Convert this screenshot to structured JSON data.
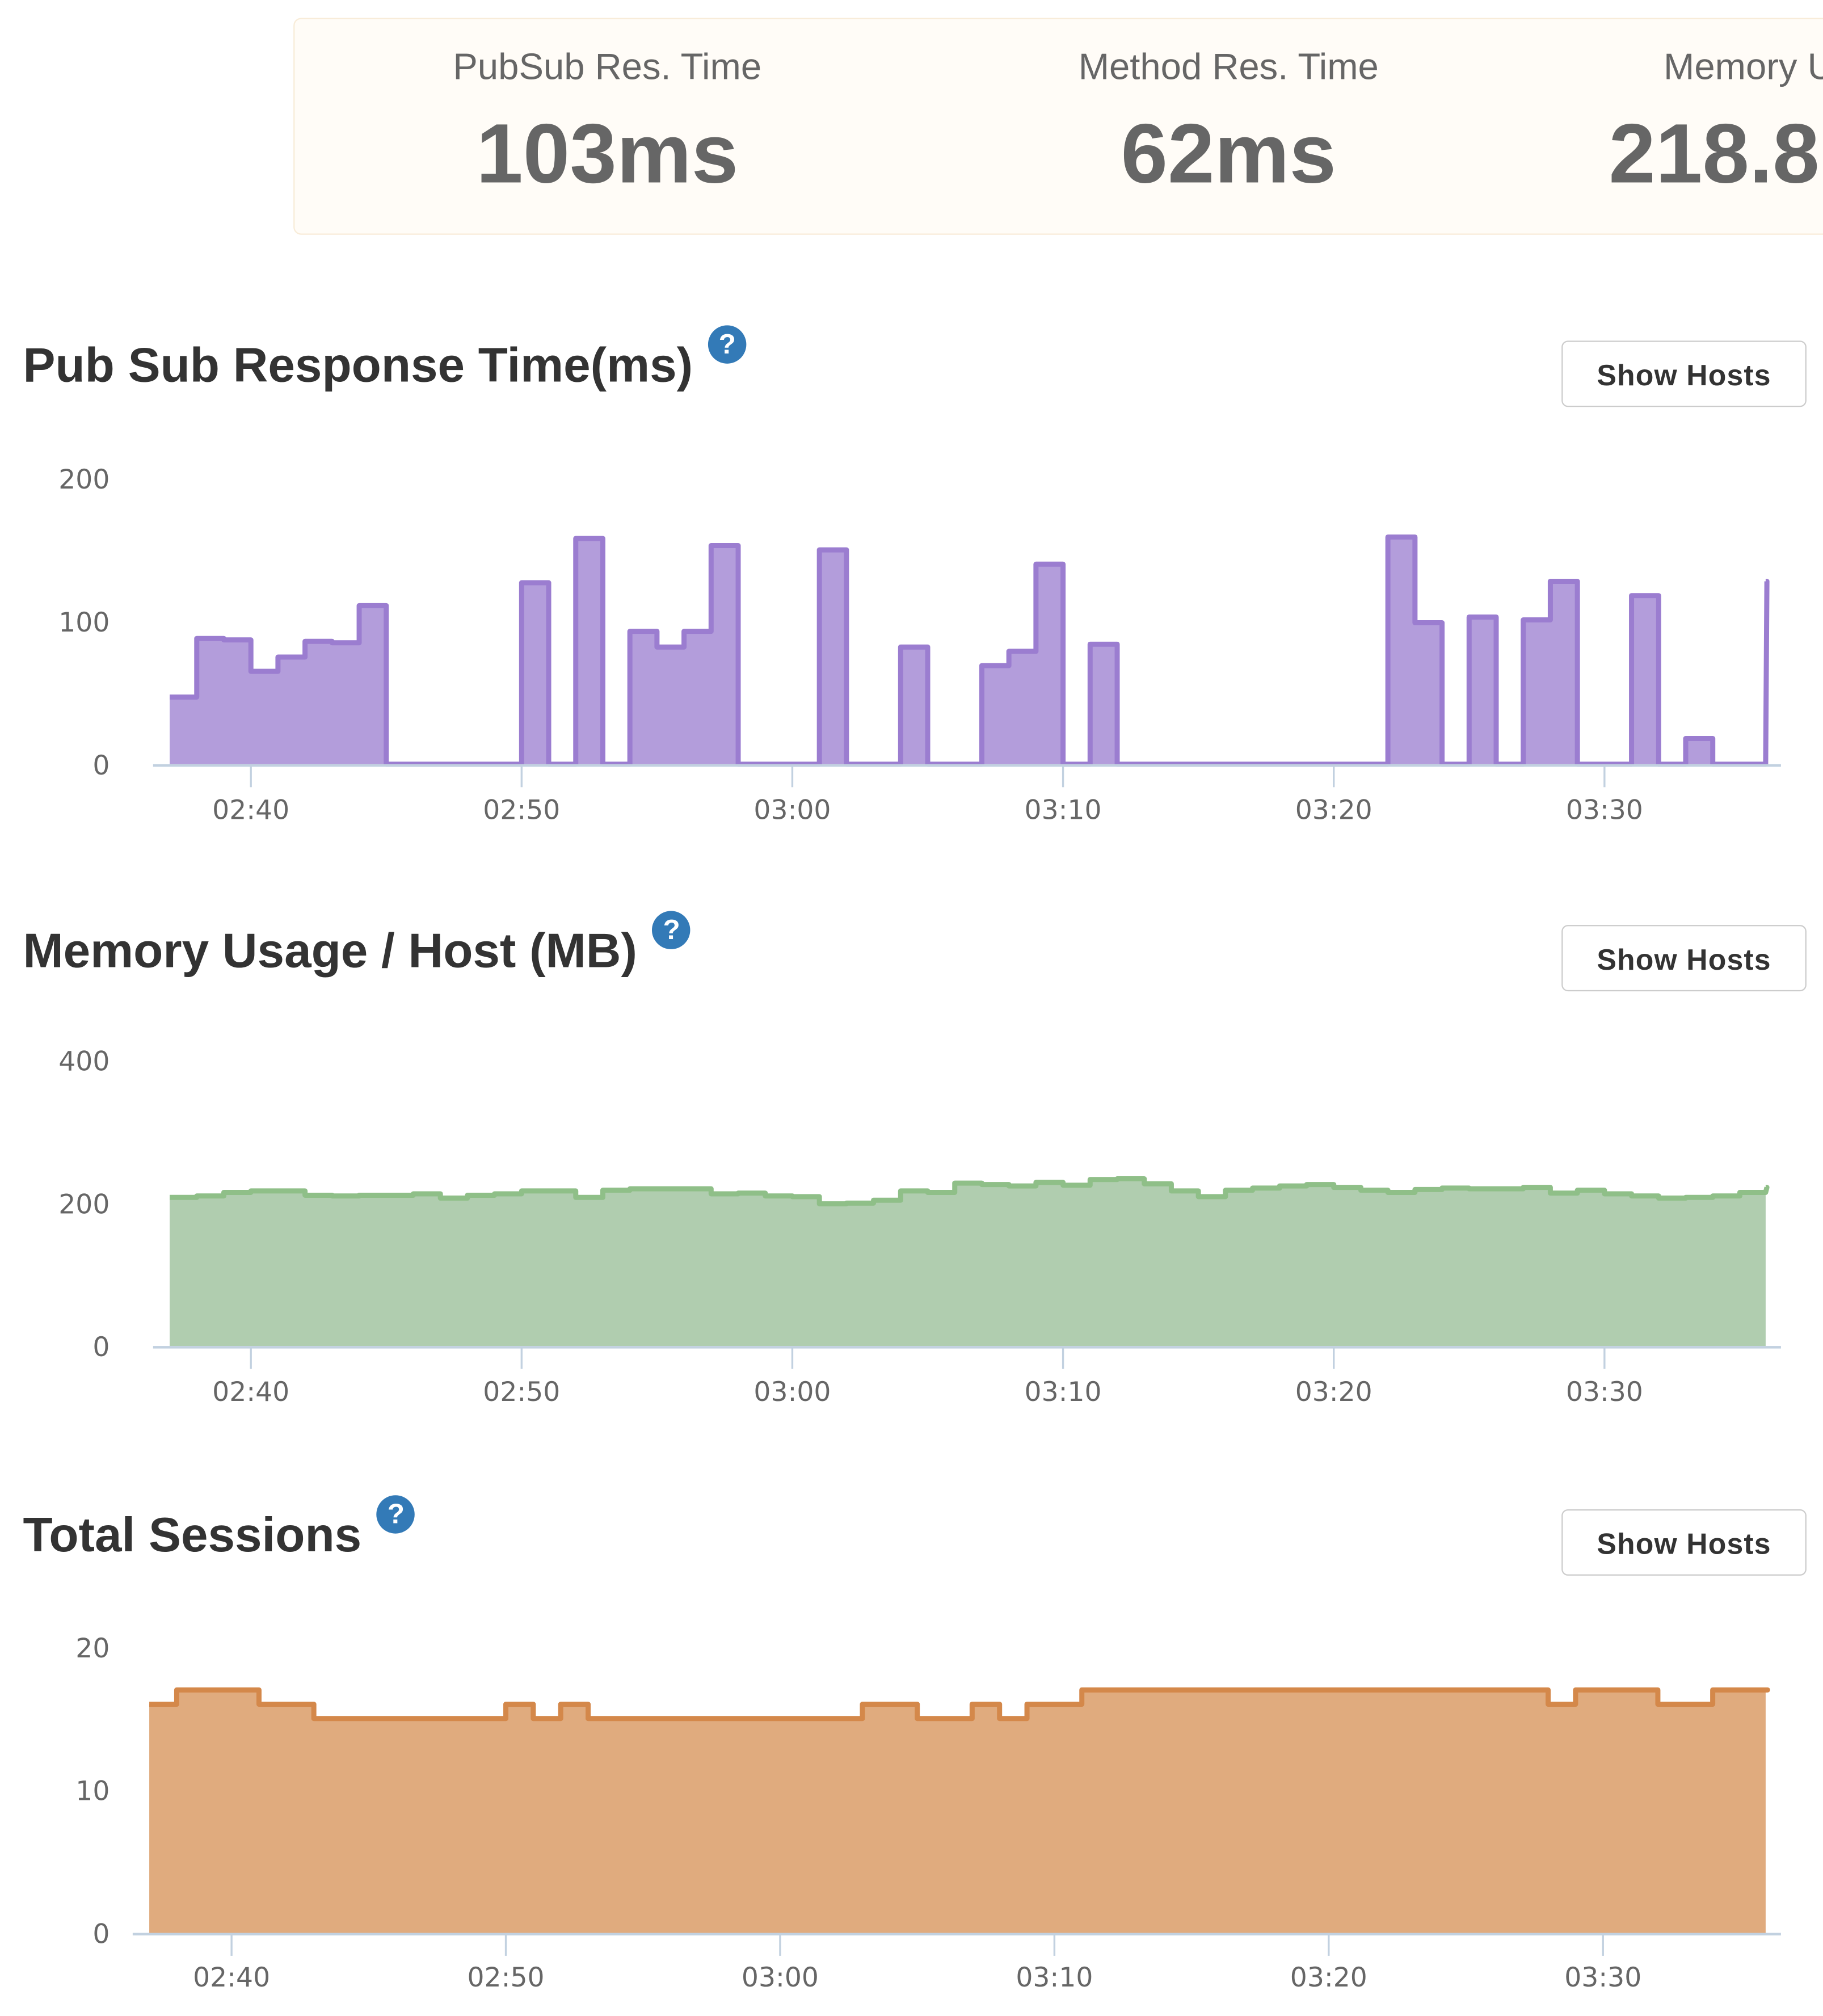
{
  "stats": [
    {
      "label": "PubSub Res. Time",
      "value": "103ms"
    },
    {
      "label": "Method Res. Time",
      "value": "62ms"
    },
    {
      "label": "Memory U",
      "value": "218.8"
    }
  ],
  "panels": [
    {
      "title": "Pub Sub Response Time(ms)",
      "button": "Show Hosts",
      "help_icon": "question-circle-icon"
    },
    {
      "title": "Memory Usage / Host (MB)",
      "button": "Show Hosts",
      "help_icon": "question-circle-icon"
    },
    {
      "title": "Total Sessions",
      "button": "Show Hosts",
      "help_icon": "question-circle-icon"
    }
  ],
  "chart_data": [
    {
      "type": "area",
      "step": true,
      "ylim": [
        0,
        200
      ],
      "yticks": [
        "0",
        "100",
        "200"
      ],
      "xticks": [
        "02:40",
        "02:50",
        "03:00",
        "03:10",
        "03:20",
        "03:30"
      ],
      "x_start": "02:37",
      "x_end": "03:36",
      "interval_minutes": 1,
      "color_stroke": "#9b7dd0",
      "color_fill": "#b39ddb",
      "values": [
        47,
        88,
        87,
        65,
        75,
        86,
        85,
        111,
        0,
        0,
        0,
        0,
        0,
        127,
        0,
        158,
        0,
        93,
        82,
        93,
        153,
        0,
        0,
        0,
        150,
        0,
        0,
        82,
        0,
        0,
        69,
        79,
        140,
        0,
        84,
        0,
        0,
        0,
        0,
        0,
        0,
        0,
        0,
        0,
        0,
        159,
        99,
        0,
        103,
        0,
        101,
        128,
        0,
        0,
        118,
        0,
        18,
        0,
        0,
        128
      ]
    },
    {
      "type": "area",
      "step": true,
      "ylim": [
        0,
        400
      ],
      "yticks": [
        "0",
        "200",
        "400"
      ],
      "xticks": [
        "02:40",
        "02:50",
        "03:00",
        "03:10",
        "03:20",
        "03:30"
      ],
      "x_start": "02:37",
      "x_end": "03:36",
      "interval_minutes": 1,
      "color_stroke": "#8fbf88",
      "color_fill": "#b0cdaf",
      "values": [
        208,
        210,
        215,
        217,
        217,
        211,
        210,
        211,
        211,
        213,
        207,
        211,
        213,
        217,
        217,
        208,
        218,
        220,
        220,
        220,
        213,
        214,
        210,
        209,
        199,
        200,
        204,
        217,
        215,
        228,
        226,
        224,
        229,
        225,
        233,
        234,
        227,
        217,
        209,
        218,
        221,
        224,
        226,
        222,
        218,
        215,
        219,
        221,
        220,
        220,
        222,
        214,
        218,
        213,
        210,
        207,
        208,
        210,
        215,
        222
      ]
    },
    {
      "type": "area",
      "step": true,
      "ylim": [
        0,
        20
      ],
      "yticks": [
        "0",
        "10",
        "20"
      ],
      "xticks": [
        "02:40",
        "02:50",
        "03:00",
        "03:10",
        "03:20",
        "03:30"
      ],
      "x_start": "02:37",
      "x_end": "03:36",
      "interval_minutes": 1,
      "color_stroke": "#d4884a",
      "color_fill": "#e0ab7e",
      "values": [
        16,
        17,
        17,
        17,
        16,
        16,
        15,
        15,
        15,
        15,
        15,
        15,
        15,
        16,
        15,
        16,
        15,
        15,
        15,
        15,
        15,
        15,
        15,
        15,
        15,
        15,
        16,
        16,
        15,
        15,
        16,
        15,
        16,
        16,
        17,
        17,
        17,
        17,
        17,
        17,
        17,
        17,
        17,
        17,
        17,
        17,
        17,
        17,
        17,
        17,
        17,
        16,
        17,
        17,
        17,
        16,
        16,
        17,
        17,
        17
      ]
    }
  ]
}
